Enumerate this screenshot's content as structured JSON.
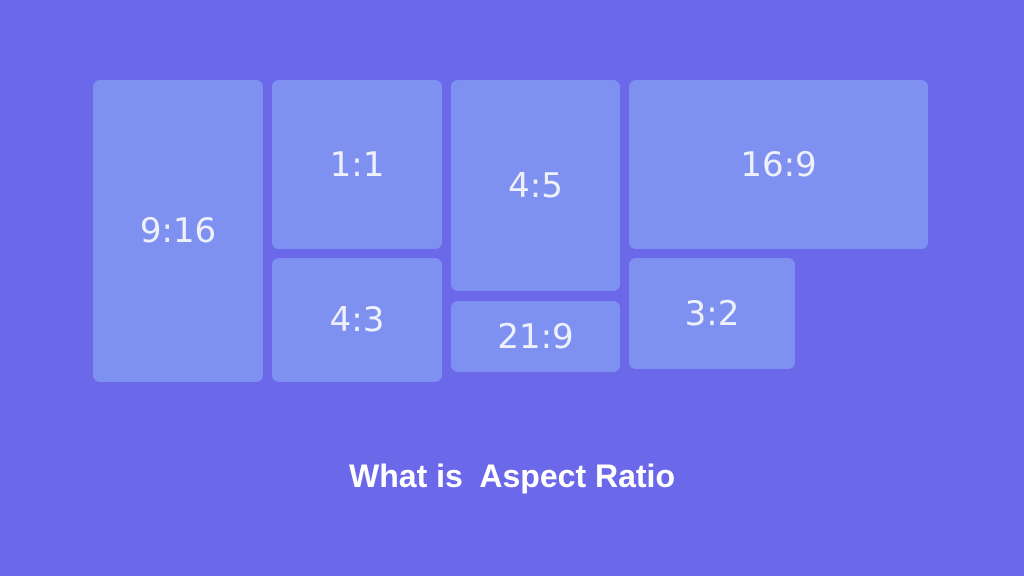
{
  "boxes": [
    {
      "id": "9-16",
      "label": "9:16"
    },
    {
      "id": "1-1",
      "label": "1:1"
    },
    {
      "id": "4-3",
      "label": "4:3"
    },
    {
      "id": "4-5",
      "label": "4:5"
    },
    {
      "id": "21-9",
      "label": "21:9"
    },
    {
      "id": "16-9",
      "label": "16:9"
    },
    {
      "id": "3-2",
      "label": "3:2"
    }
  ],
  "title": "What is  Aspect Ratio",
  "colors": {
    "background": "#6b69ea",
    "box": "#7e91f0",
    "text": "#ffffff"
  }
}
